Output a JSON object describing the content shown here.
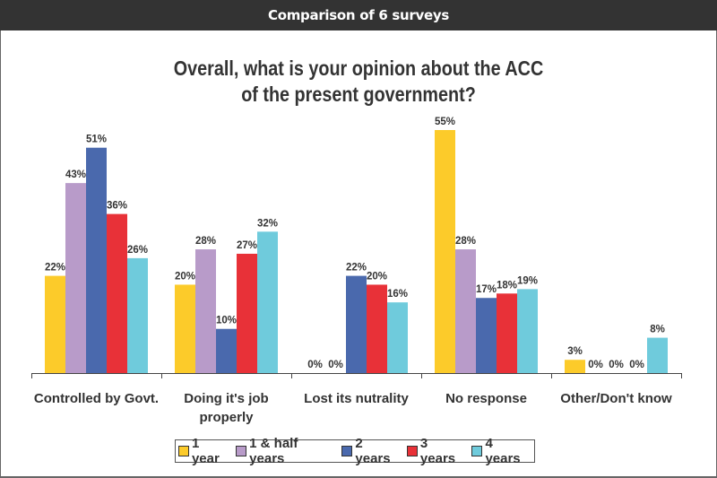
{
  "header": {
    "title": "Comparison of 6 surveys"
  },
  "chart_data": {
    "type": "bar",
    "title": "Overall, what is your opinion about the ACC of the present government?",
    "title_lines": [
      "Overall, what is your opinion about the ACC",
      "of the present government?"
    ],
    "categories": [
      "Controlled by Govt.",
      "Doing it's job properly",
      "Lost its nutrality",
      "No response",
      "Other/Don't know"
    ],
    "category_lines": [
      [
        "Controlled by Govt."
      ],
      [
        "Doing it's job",
        "properly"
      ],
      [
        "Lost its nutrality"
      ],
      [
        "No response"
      ],
      [
        "Other/Don't know"
      ]
    ],
    "series": [
      {
        "name": "1 year",
        "color": "#FCCB2A",
        "values": [
          22,
          20,
          0,
          55,
          3
        ]
      },
      {
        "name": "1 & half years",
        "color": "#B89BC9",
        "values": [
          43,
          28,
          0,
          28,
          0
        ]
      },
      {
        "name": "2 years",
        "color": "#4A69AD",
        "values": [
          51,
          10,
          22,
          17,
          0
        ]
      },
      {
        "name": "3 years",
        "color": "#E83138",
        "values": [
          36,
          27,
          20,
          18,
          0
        ]
      },
      {
        "name": "4 years",
        "color": "#6FCBDC",
        "values": [
          26,
          32,
          16,
          19,
          8
        ]
      }
    ],
    "value_suffix": "%",
    "xlabel": "",
    "ylabel": "",
    "ylim": [
      0,
      55
    ],
    "grid": false,
    "legend_position": "bottom"
  }
}
